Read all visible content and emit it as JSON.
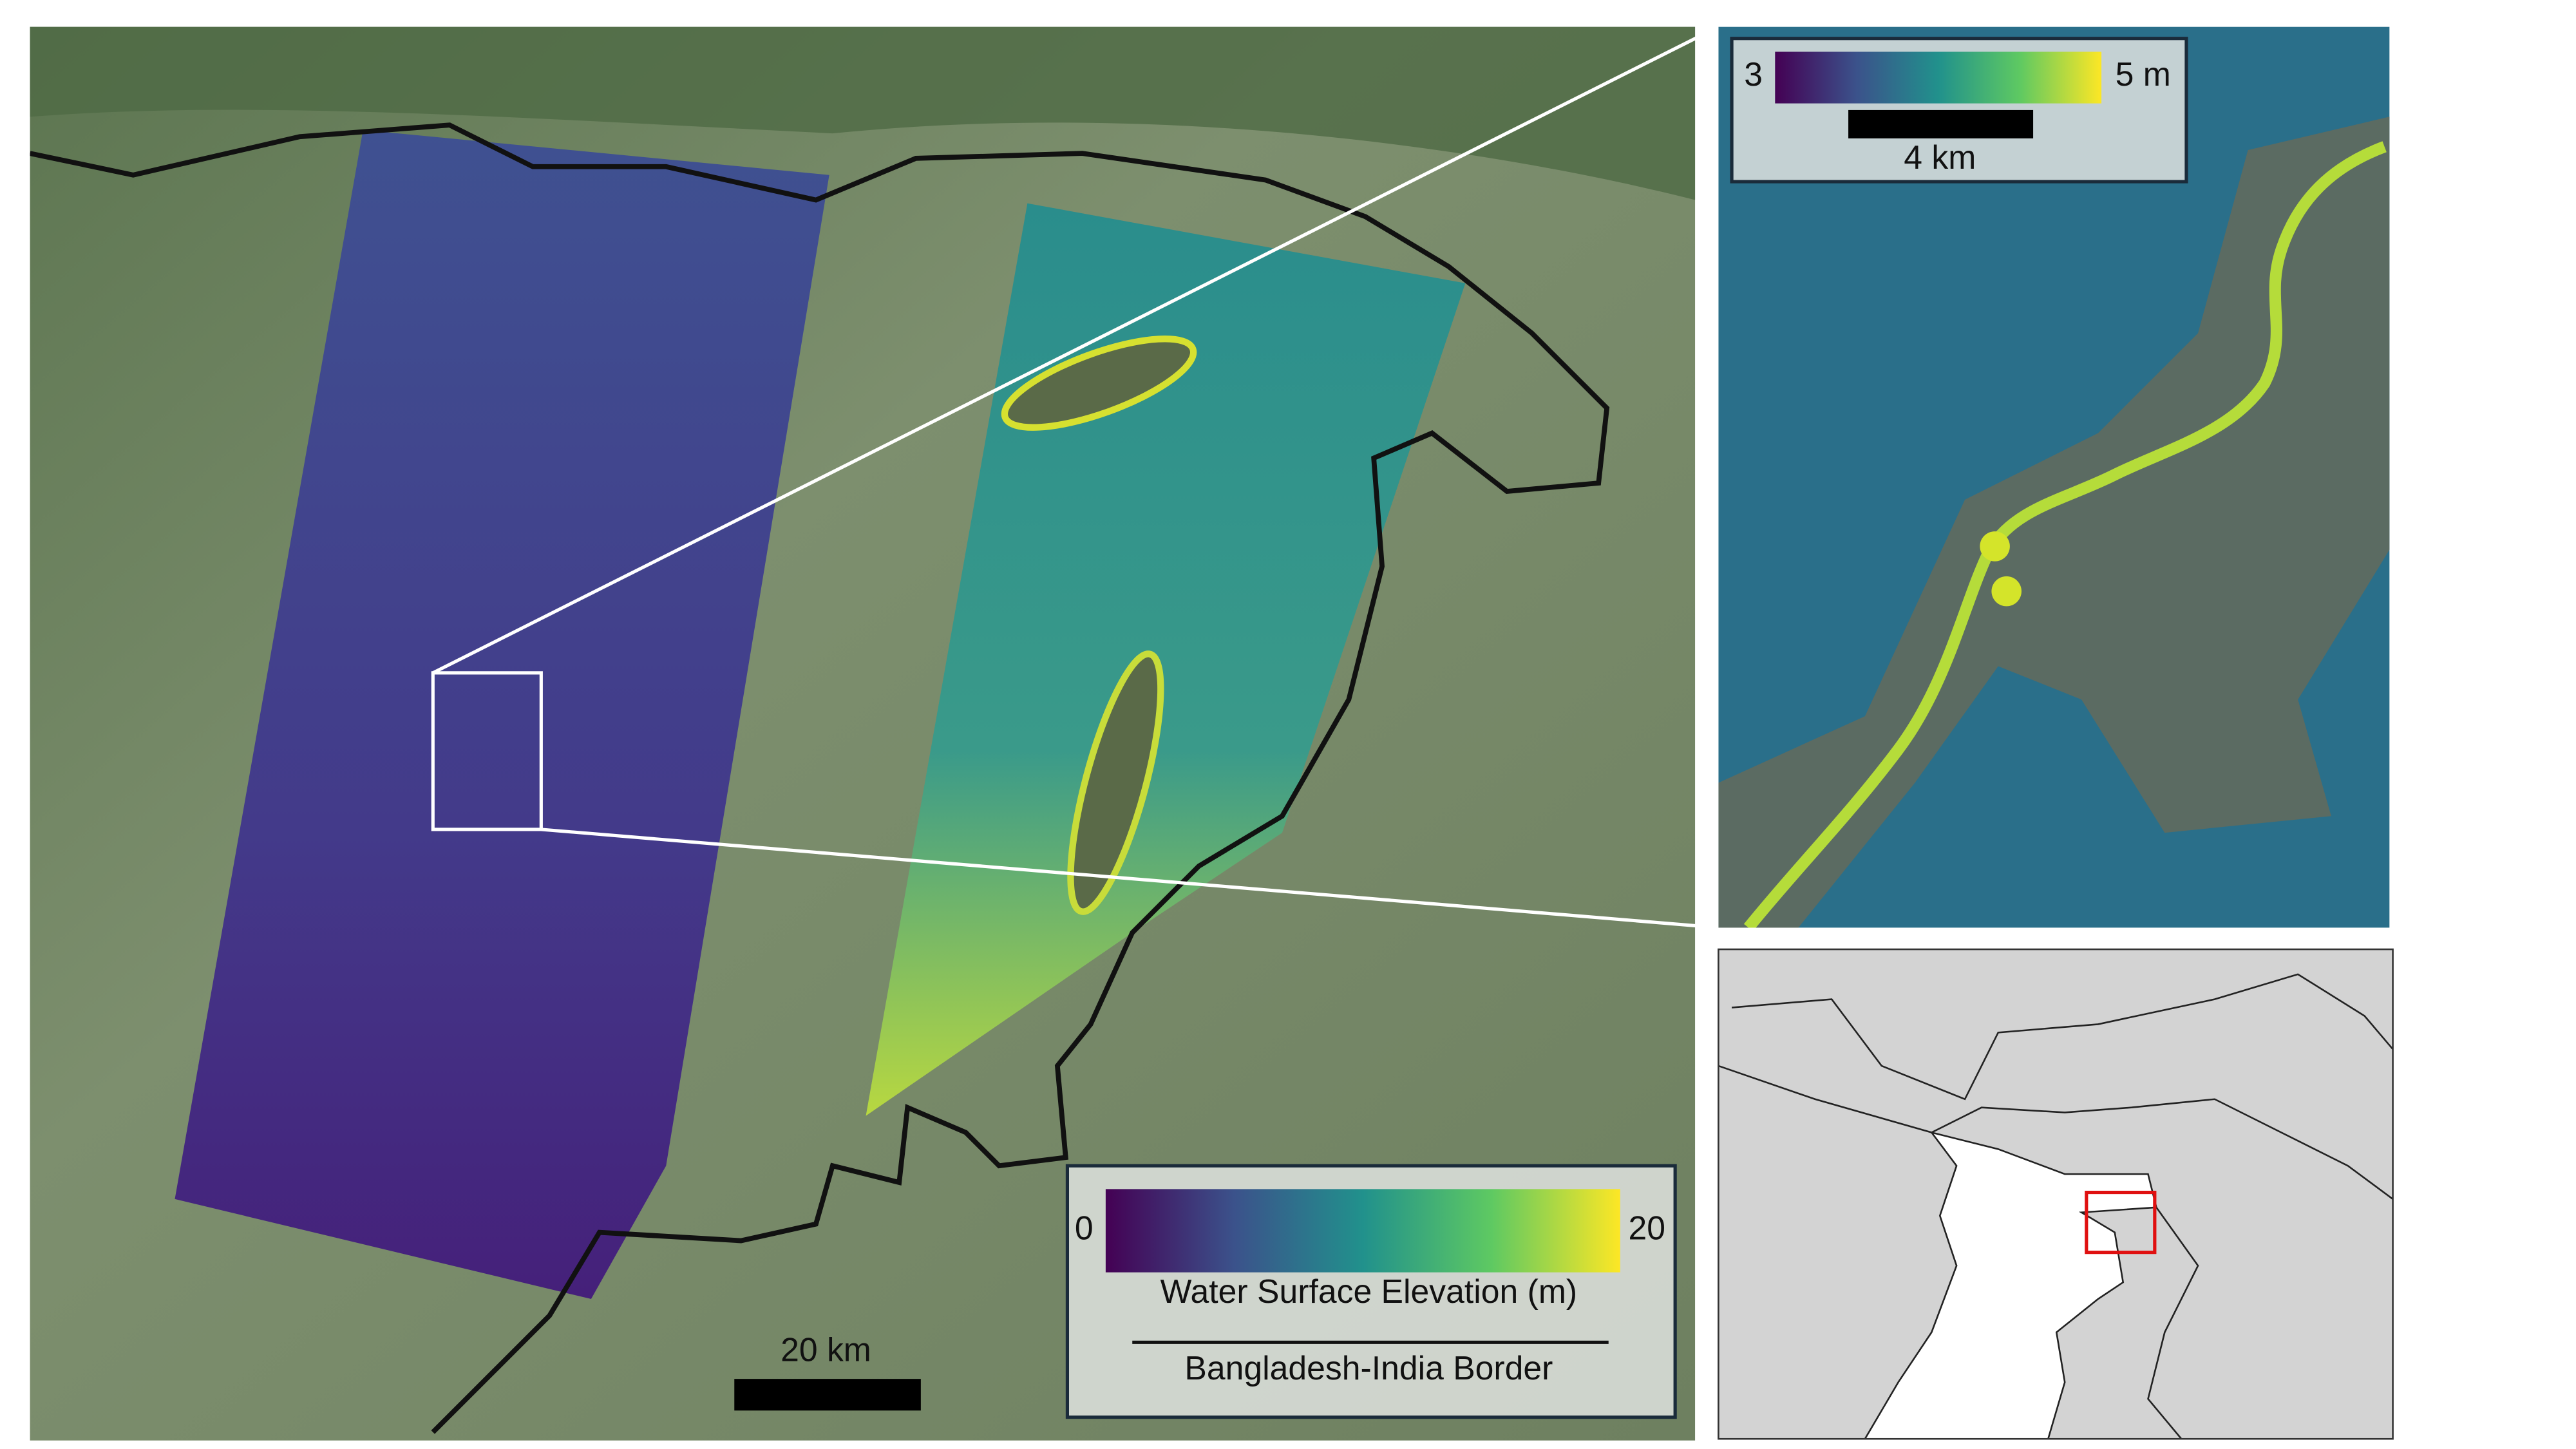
{
  "main_map": {
    "legend": {
      "colorbar_min": "0",
      "colorbar_max": "20",
      "colorbar_title": "Water Surface Elevation (m)",
      "border_label": "Bangladesh-India Border"
    },
    "scale_bar": "20 km"
  },
  "zoom_inset": {
    "colorbar_min": "3",
    "colorbar_max": "5 m",
    "scale_bar": "4 km"
  }
}
